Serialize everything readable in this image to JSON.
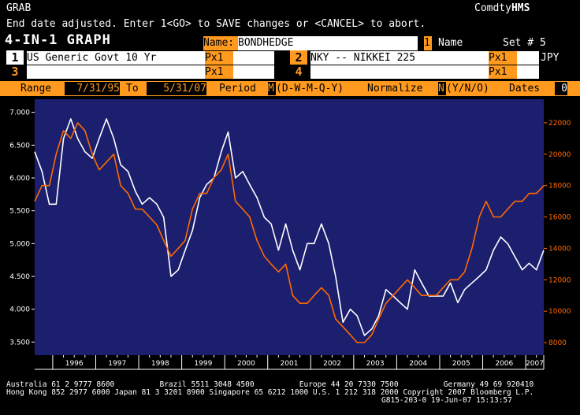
{
  "header": {
    "left_label": "GRAB",
    "right_label": "Comdty",
    "right_brand": "HMS",
    "message": "End date adjusted. Enter 1<GO> to SAVE changes or <CANCEL> to abort.",
    "title": "4-IN-1 GRAPH",
    "name_label": "Name:",
    "name_value": "BONDHEDGE",
    "name_number": "1",
    "name_text": "Name",
    "set_label": "Set # 5"
  },
  "series_rows": [
    {
      "slot": "1",
      "ticker": "US Generic Govt 10 Yr",
      "field": "Px1",
      "slot_color": "#ffffff"
    },
    {
      "slot": "2",
      "ticker": "NKY -- NIKKEI 225",
      "field": "Px1",
      "currency": "JPY",
      "slot_color": "#ff9a1f"
    },
    {
      "slot": "3",
      "ticker": "",
      "field": "Px1",
      "slot_color": "#ff9a1f"
    },
    {
      "slot": "4",
      "ticker": "",
      "field": "Px1",
      "slot_color": "#ff9a1f"
    }
  ],
  "params": {
    "range_label": "Range",
    "range_start": "7/31/95",
    "to_label": "To",
    "range_end": "5/31/07",
    "period_label": "Period",
    "period_value": "M",
    "period_options": "(D-W-M-Q-Y)",
    "normalize_label": "Normalize",
    "normalize_value": "N",
    "normalize_options": "(Y/N/O)",
    "dates_label": "Dates",
    "dates_value": "0"
  },
  "colors": {
    "bloomberg_orange": "#ff9a1f",
    "plot_bg": "#1c1e6e",
    "series_white": "#ffffff",
    "series_orange": "#ff6a00"
  },
  "chart_data": {
    "type": "line",
    "x": [
      1995.58,
      1995.75,
      1995.92,
      1996.08,
      1996.25,
      1996.42,
      1996.58,
      1996.75,
      1996.92,
      1997.08,
      1997.25,
      1997.42,
      1997.58,
      1997.75,
      1997.92,
      1998.08,
      1998.25,
      1998.42,
      1998.58,
      1998.75,
      1998.92,
      1999.08,
      1999.25,
      1999.42,
      1999.58,
      1999.75,
      1999.92,
      2000.08,
      2000.25,
      2000.42,
      2000.58,
      2000.75,
      2000.92,
      2001.08,
      2001.25,
      2001.42,
      2001.58,
      2001.75,
      2001.92,
      2002.08,
      2002.25,
      2002.42,
      2002.58,
      2002.75,
      2002.92,
      2003.08,
      2003.25,
      2003.42,
      2003.58,
      2003.75,
      2003.92,
      2004.08,
      2004.25,
      2004.42,
      2004.58,
      2004.75,
      2004.92,
      2005.08,
      2005.25,
      2005.42,
      2005.58,
      2005.75,
      2005.92,
      2006.08,
      2006.25,
      2006.42,
      2006.58,
      2006.75,
      2006.92,
      2007.08,
      2007.25,
      2007.42
    ],
    "series": [
      {
        "y_axis": "left",
        "color": "#ffffff",
        "values": [
          6.4,
          6.1,
          5.6,
          5.6,
          6.6,
          6.9,
          6.6,
          6.4,
          6.3,
          6.6,
          6.9,
          6.6,
          6.2,
          6.1,
          5.8,
          5.6,
          5.7,
          5.6,
          5.4,
          4.5,
          4.6,
          4.9,
          5.2,
          5.7,
          5.9,
          6.0,
          6.4,
          6.7,
          6.0,
          6.1,
          5.9,
          5.7,
          5.4,
          5.3,
          4.9,
          5.3,
          4.9,
          4.6,
          5.0,
          5.0,
          5.3,
          5.0,
          4.5,
          3.8,
          4.0,
          3.9,
          3.6,
          3.7,
          3.9,
          4.3,
          4.2,
          4.1,
          4.0,
          4.6,
          4.4,
          4.2,
          4.2,
          4.2,
          4.4,
          4.1,
          4.3,
          4.4,
          4.5,
          4.6,
          4.9,
          5.1,
          5.0,
          4.8,
          4.6,
          4.7,
          4.6,
          4.9
        ]
      },
      {
        "y_axis": "right",
        "color": "#ff6a00",
        "values": [
          17000,
          18000,
          18000,
          20000,
          21500,
          21000,
          22000,
          21500,
          20000,
          19000,
          19500,
          20000,
          18000,
          17500,
          16500,
          16500,
          16000,
          15500,
          14500,
          13500,
          14000,
          14500,
          16500,
          17500,
          17500,
          18500,
          19000,
          20000,
          17000,
          16500,
          16000,
          14500,
          13500,
          13000,
          12500,
          13000,
          11000,
          10500,
          10500,
          11000,
          11500,
          11000,
          9500,
          9000,
          8500,
          8000,
          8000,
          8500,
          9500,
          10500,
          11000,
          11500,
          12000,
          11500,
          11000,
          11000,
          11000,
          11500,
          12000,
          12000,
          12500,
          14000,
          16000,
          17000,
          16000,
          16000,
          16500,
          17000,
          17000,
          17500,
          17500,
          18000
        ]
      }
    ],
    "y_left": {
      "ticks": [
        "3.500",
        "4.000",
        "4.500",
        "5.000",
        "5.500",
        "6.000",
        "6.500",
        "7.000"
      ],
      "range": [
        3.3,
        7.2
      ]
    },
    "y_right": {
      "ticks": [
        "8000",
        "10000",
        "12000",
        "14000",
        "16000",
        "18000",
        "20000",
        "22000"
      ],
      "range": [
        7200,
        23500
      ]
    },
    "x_labels": [
      "1996",
      "1997",
      "1998",
      "1999",
      "2000",
      "2001",
      "2002",
      "2003",
      "2004",
      "2005",
      "2006",
      "2007"
    ],
    "x_range": [
      1995.58,
      2007.42
    ]
  },
  "footer": {
    "line1": "Australia 61 2 9777 8600          Brazil 5511 3048 4500          Europe 44 20 7330 7500          Germany 49 69 920410",
    "line2": "Hong Kong 852 2977 6000 Japan 81 3 3201 8900 Singapore 65 6212 1000 U.S. 1 212 318 2000 Copyright 2007 Bloomberg L.P.",
    "line3": "G815-203-0 19-Jun-07 15:13:57"
  }
}
